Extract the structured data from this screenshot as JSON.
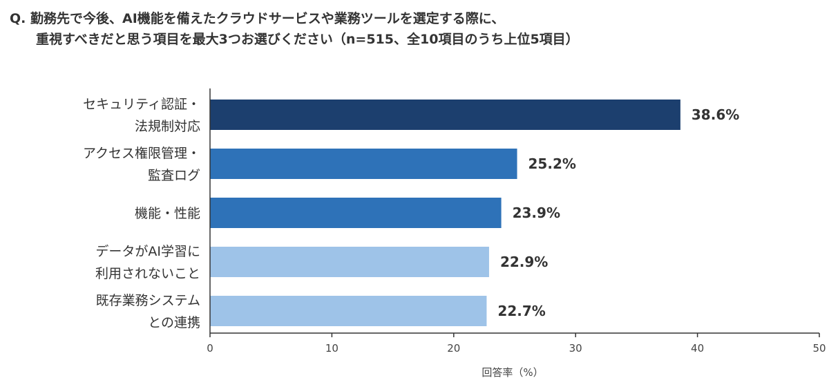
{
  "question": {
    "line1": "Q. 勤務先で今後、AI機能を備えたクラウドサービスや業務ツールを選定する際に、",
    "line2": "重視すべきだと思う項目を最大3つお選びください（n=515、全10項目のうち上位5項目）"
  },
  "chart_data": {
    "type": "bar",
    "orientation": "horizontal",
    "categories": [
      [
        "セキュリティ認証・",
        "法規制対応"
      ],
      [
        "アクセス権限管理・",
        "監査ログ"
      ],
      [
        "機能・性能"
      ],
      [
        "データがAI学習に",
        "利用されないこと"
      ],
      [
        "既存業務システム",
        "との連携"
      ]
    ],
    "values": [
      38.6,
      25.2,
      23.9,
      22.9,
      22.7
    ],
    "value_labels": [
      "38.6%",
      "25.2%",
      "23.9%",
      "22.9%",
      "22.7%"
    ],
    "colors": [
      "#1c3f6e",
      "#2e72b8",
      "#2e72b8",
      "#9ec3e8",
      "#9ec3e8"
    ],
    "xlabel": "回答率（%）",
    "ylabel": "",
    "xlim": [
      0,
      50
    ],
    "xticks": [
      0,
      10,
      20,
      30,
      40,
      50
    ],
    "grid": false
  }
}
